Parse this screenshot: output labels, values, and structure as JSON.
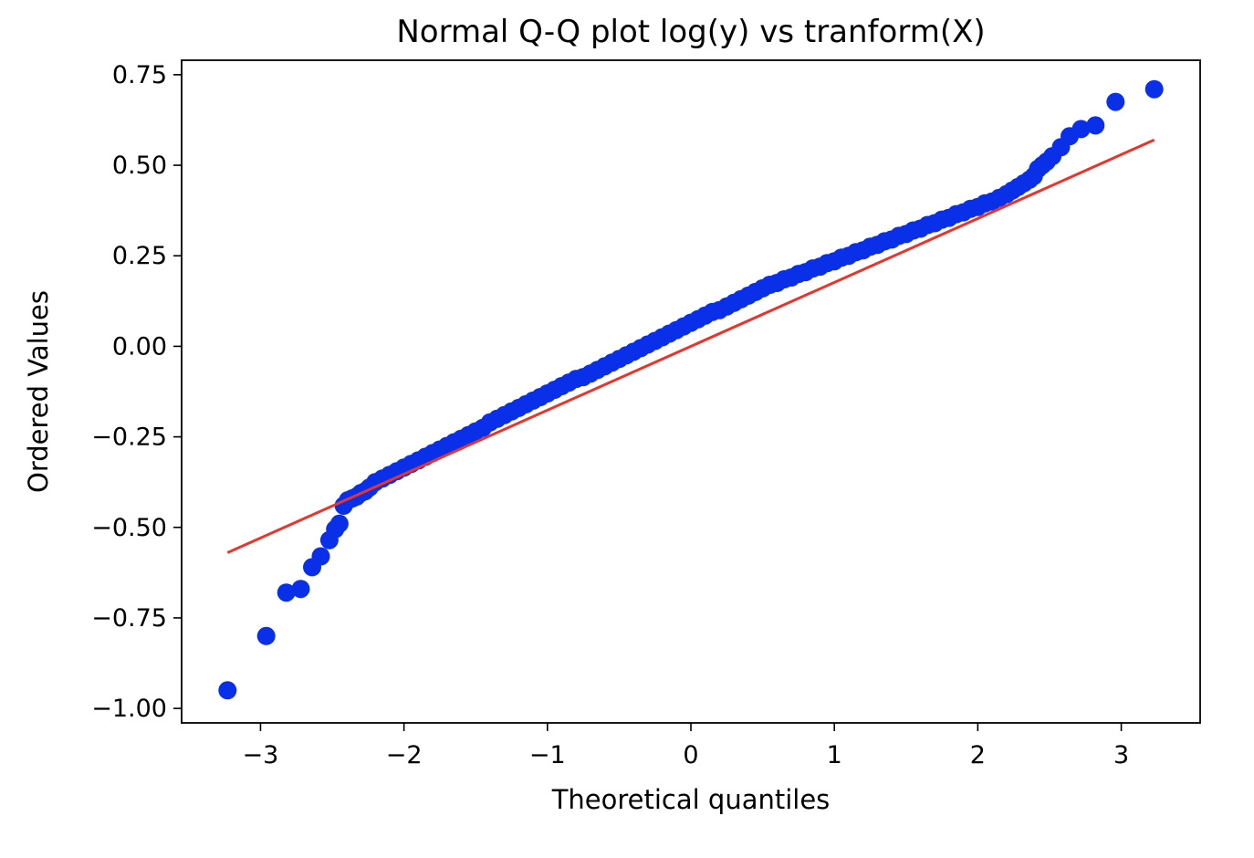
{
  "chart_data": {
    "type": "scatter",
    "title": "Normal Q-Q plot log(y) vs tranform(X)",
    "xlabel": "Theoretical quantiles",
    "ylabel": "Ordered Values",
    "xlim": [
      -3.55,
      3.55
    ],
    "ylim": [
      -1.04,
      0.79
    ],
    "x_ticks": [
      {
        "value": -3,
        "label": "−3"
      },
      {
        "value": -2,
        "label": "−2"
      },
      {
        "value": -1,
        "label": "−1"
      },
      {
        "value": 0,
        "label": "0"
      },
      {
        "value": 1,
        "label": "1"
      },
      {
        "value": 2,
        "label": "2"
      },
      {
        "value": 3,
        "label": "3"
      }
    ],
    "y_ticks": [
      {
        "value": -1.0,
        "label": "−1.00"
      },
      {
        "value": -0.75,
        "label": "−0.75"
      },
      {
        "value": -0.5,
        "label": "−0.50"
      },
      {
        "value": -0.25,
        "label": "−0.25"
      },
      {
        "value": 0.0,
        "label": "0.00"
      },
      {
        "value": 0.25,
        "label": "0.25"
      },
      {
        "value": 0.5,
        "label": "0.50"
      },
      {
        "value": 0.75,
        "label": "0.75"
      }
    ],
    "grid": false,
    "series": [
      {
        "kind": "points",
        "color": "#0a2fe8",
        "x": [
          -3.23,
          -2.96,
          -2.82,
          -2.72,
          -2.64,
          -2.58,
          -2.52,
          -2.48,
          -2.45,
          -2.42,
          -2.39,
          -2.36,
          -2.33,
          -2.3,
          -2.27,
          -2.24,
          -2.2,
          -2.15,
          -2.1,
          -2.05,
          -2.0,
          -1.95,
          -1.9,
          -1.85,
          -1.8,
          -1.75,
          -1.7,
          -1.65,
          -1.6,
          -1.55,
          -1.5,
          -1.45,
          -1.4,
          -1.35,
          -1.3,
          -1.25,
          -1.2,
          -1.15,
          -1.1,
          -1.05,
          -1.0,
          -0.95,
          -0.9,
          -0.85,
          -0.8,
          -0.75,
          -0.7,
          -0.65,
          -0.6,
          -0.55,
          -0.5,
          -0.45,
          -0.4,
          -0.35,
          -0.3,
          -0.25,
          -0.2,
          -0.15,
          -0.1,
          -0.05,
          0.0,
          0.05,
          0.1,
          0.15,
          0.2,
          0.25,
          0.3,
          0.35,
          0.4,
          0.45,
          0.5,
          0.55,
          0.6,
          0.65,
          0.7,
          0.75,
          0.8,
          0.85,
          0.9,
          0.95,
          1.0,
          1.05,
          1.1,
          1.15,
          1.2,
          1.25,
          1.3,
          1.35,
          1.4,
          1.45,
          1.5,
          1.55,
          1.6,
          1.65,
          1.7,
          1.75,
          1.8,
          1.85,
          1.9,
          1.95,
          2.0,
          2.05,
          2.1,
          2.15,
          2.2,
          2.24,
          2.28,
          2.32,
          2.36,
          2.39,
          2.42,
          2.45,
          2.48,
          2.52,
          2.58,
          2.64,
          2.72,
          2.82,
          2.96,
          3.23
        ],
        "y": [
          -0.95,
          -0.8,
          -0.68,
          -0.67,
          -0.61,
          -0.58,
          -0.535,
          -0.505,
          -0.49,
          -0.44,
          -0.425,
          -0.42,
          -0.415,
          -0.405,
          -0.4,
          -0.39,
          -0.375,
          -0.365,
          -0.355,
          -0.345,
          -0.335,
          -0.325,
          -0.315,
          -0.305,
          -0.295,
          -0.285,
          -0.275,
          -0.265,
          -0.255,
          -0.245,
          -0.235,
          -0.225,
          -0.21,
          -0.2,
          -0.19,
          -0.18,
          -0.17,
          -0.16,
          -0.15,
          -0.14,
          -0.13,
          -0.12,
          -0.11,
          -0.1,
          -0.09,
          -0.085,
          -0.075,
          -0.065,
          -0.055,
          -0.045,
          -0.035,
          -0.025,
          -0.015,
          -0.005,
          0.005,
          0.015,
          0.025,
          0.035,
          0.045,
          0.055,
          0.065,
          0.075,
          0.085,
          0.095,
          0.1,
          0.11,
          0.12,
          0.13,
          0.14,
          0.15,
          0.16,
          0.17,
          0.175,
          0.185,
          0.19,
          0.2,
          0.205,
          0.215,
          0.22,
          0.23,
          0.235,
          0.245,
          0.25,
          0.26,
          0.265,
          0.275,
          0.28,
          0.29,
          0.295,
          0.305,
          0.31,
          0.32,
          0.325,
          0.335,
          0.34,
          0.35,
          0.355,
          0.365,
          0.37,
          0.38,
          0.385,
          0.395,
          0.4,
          0.41,
          0.42,
          0.43,
          0.44,
          0.45,
          0.46,
          0.47,
          0.49,
          0.5,
          0.51,
          0.525,
          0.55,
          0.58,
          0.6,
          0.61,
          0.675,
          0.71
        ]
      },
      {
        "kind": "line",
        "color": "#e8342a",
        "x": [
          -3.23,
          3.23
        ],
        "y": [
          -0.57,
          0.57
        ]
      }
    ]
  }
}
